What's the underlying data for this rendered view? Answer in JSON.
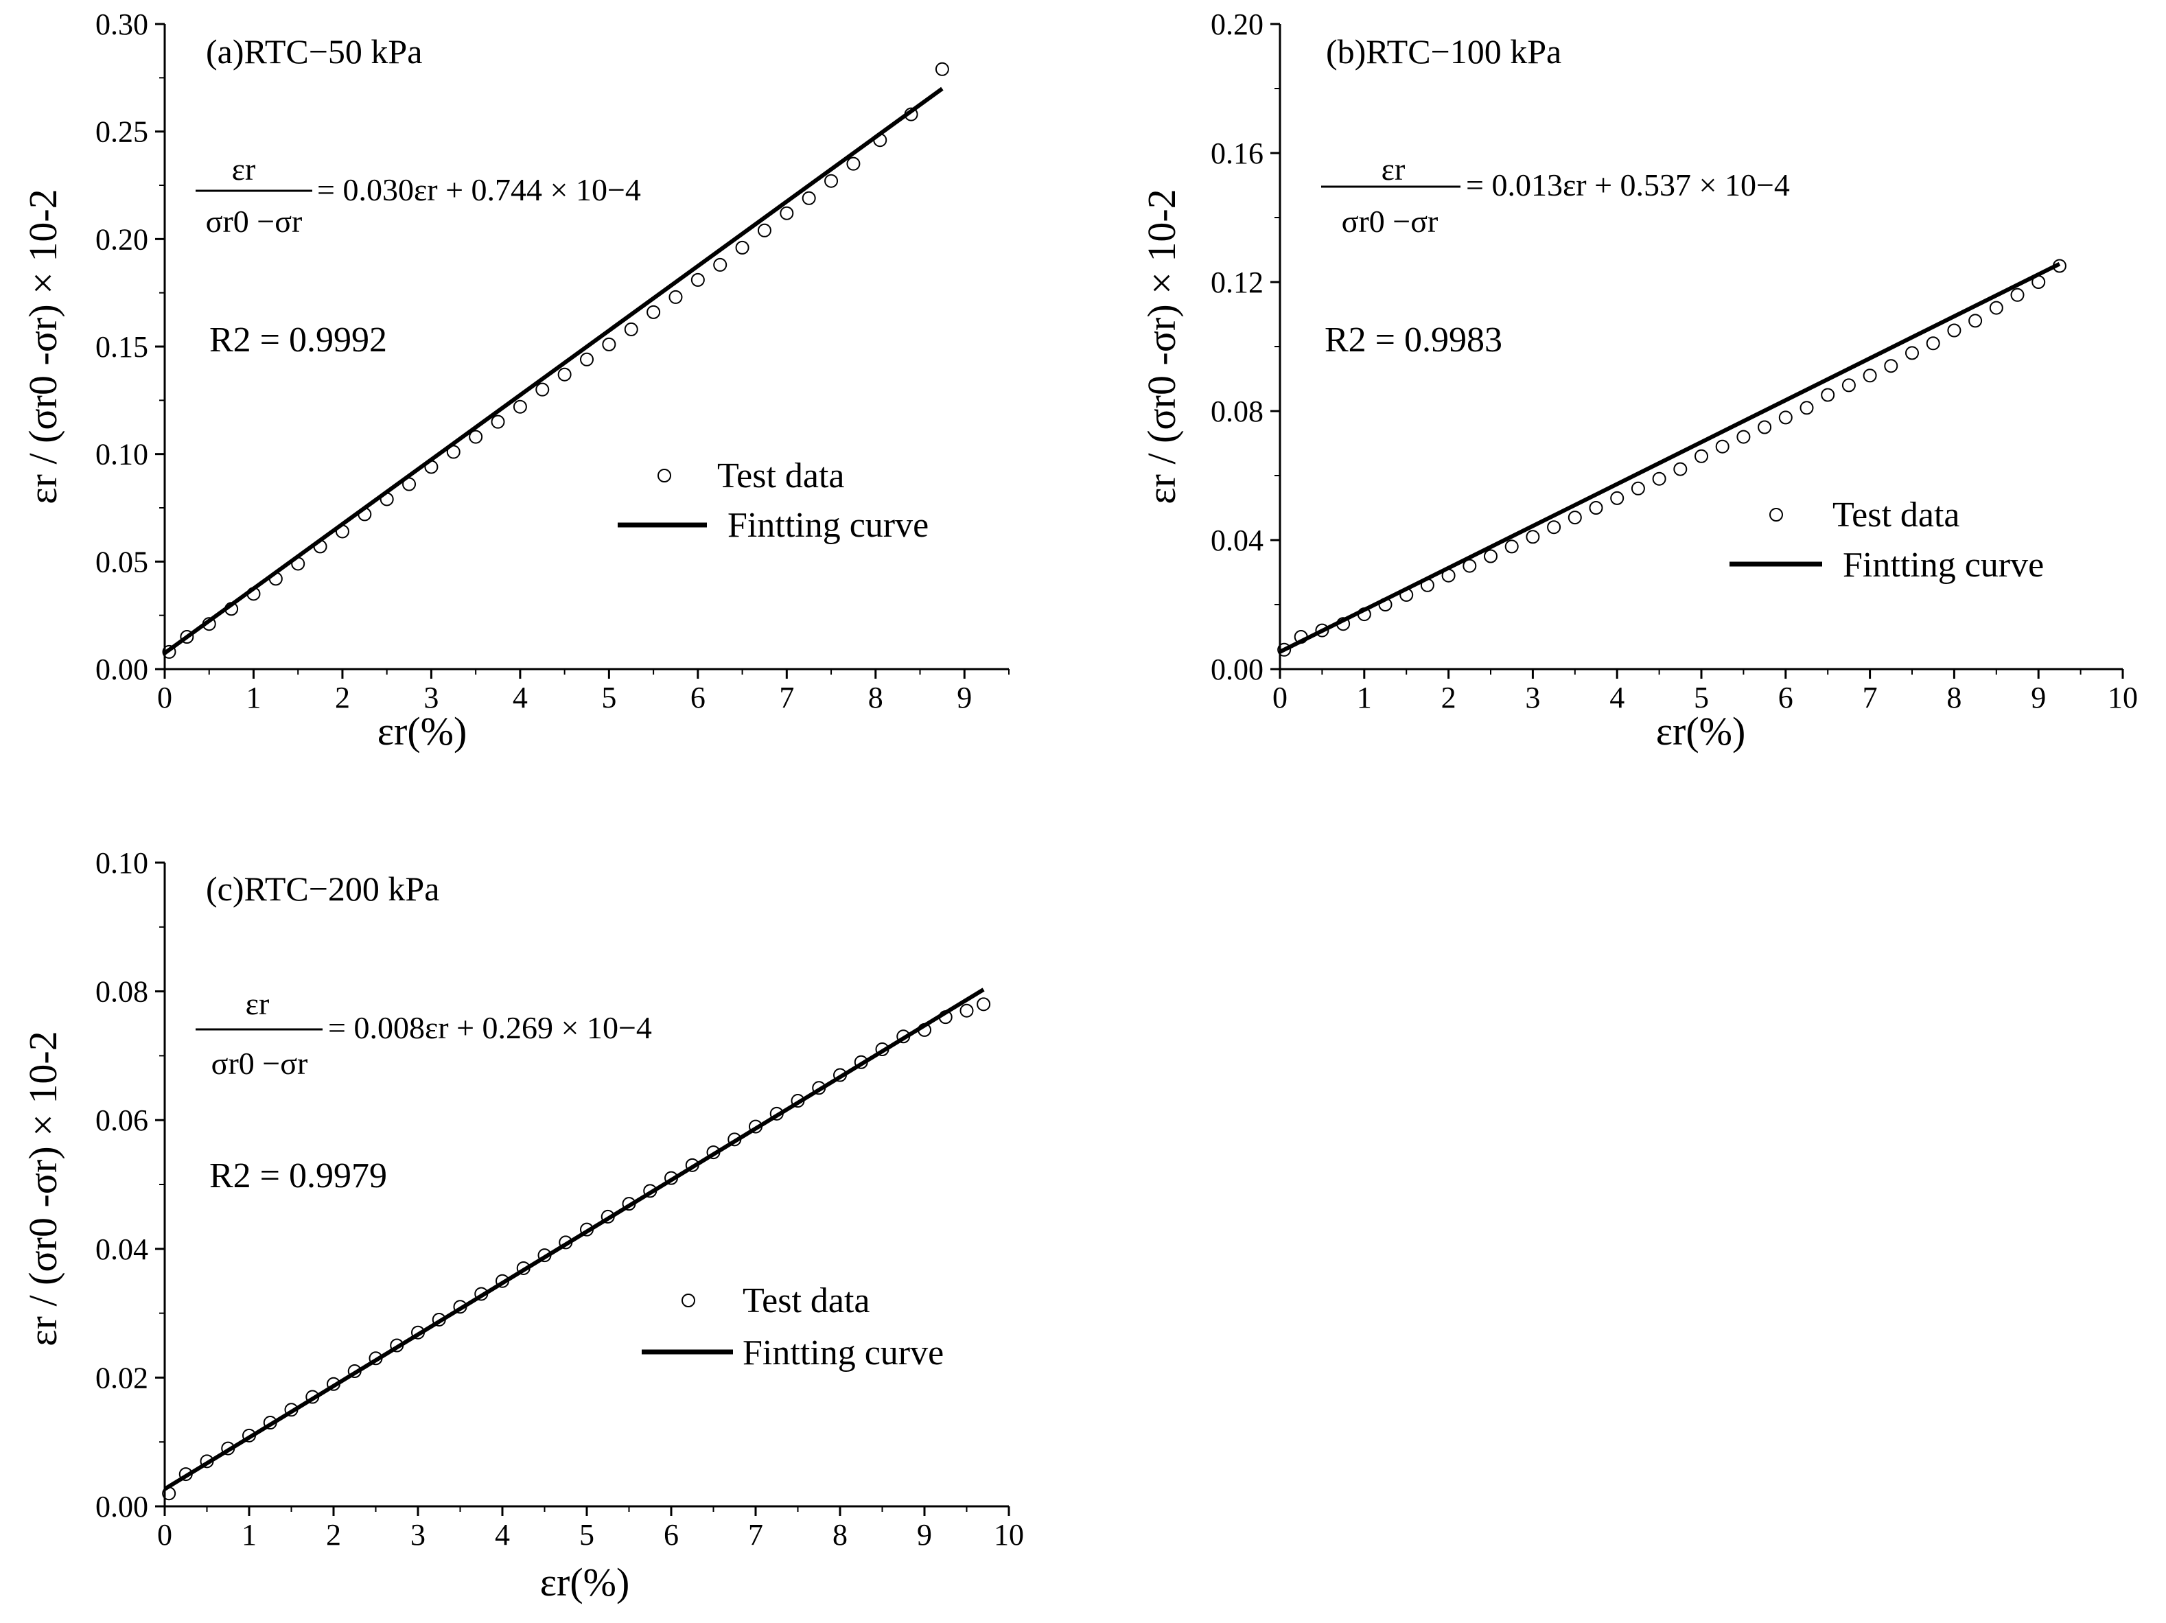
{
  "chart_data": [
    {
      "type": "scatter",
      "title": "(a)RTC−50 kPa",
      "xlabel": "εr(%)",
      "ylabel": "εr / (σr0 -σr) × 10-2",
      "xlim": [
        0,
        9.5
      ],
      "ylim": [
        0,
        0.3
      ],
      "xticks": [
        "0",
        "1",
        "2",
        "3",
        "4",
        "5",
        "6",
        "7",
        "8",
        "9"
      ],
      "yticks": [
        "0.00",
        "0.05",
        "0.10",
        "0.15",
        "0.20",
        "0.25",
        "0.30"
      ],
      "equation": {
        "lhs_num": "εr",
        "lhs_den": "σr0 −σr",
        "rhs": "= 0.030εr + 0.744 × 10−4"
      },
      "r2": "R2 = 0.9992",
      "legend": [
        "Test data",
        "Fintting curve"
      ],
      "legend_position": "center-right",
      "fit": {
        "slope": 0.03,
        "intercept": 0.00744,
        "x_range": [
          0,
          8.75
        ]
      },
      "series": [
        {
          "name": "Test data",
          "marker": "open-circle",
          "x": [
            0.05,
            0.25,
            0.5,
            0.75,
            1.0,
            1.25,
            1.5,
            1.75,
            2.0,
            2.25,
            2.5,
            2.75,
            3.0,
            3.25,
            3.5,
            3.75,
            4.0,
            4.25,
            4.5,
            4.75,
            5.0,
            5.25,
            5.5,
            5.75,
            6.0,
            6.25,
            6.5,
            6.75,
            7.0,
            7.25,
            7.5,
            7.75,
            8.05,
            8.4,
            8.75
          ],
          "y": [
            0.008,
            0.015,
            0.021,
            0.028,
            0.035,
            0.042,
            0.049,
            0.057,
            0.064,
            0.072,
            0.079,
            0.086,
            0.094,
            0.101,
            0.108,
            0.115,
            0.122,
            0.13,
            0.137,
            0.144,
            0.151,
            0.158,
            0.166,
            0.173,
            0.181,
            0.188,
            0.196,
            0.204,
            0.212,
            0.219,
            0.227,
            0.235,
            0.246,
            0.258,
            0.279
          ]
        },
        {
          "name": "Fintting curve",
          "line": "solid-black"
        }
      ]
    },
    {
      "type": "scatter",
      "title": "(b)RTC−100 kPa",
      "xlabel": "εr(%)",
      "ylabel": "εr / (σr0 -σr) × 10-2",
      "xlim": [
        0,
        10
      ],
      "ylim": [
        0,
        0.2
      ],
      "xticks": [
        "0",
        "1",
        "2",
        "3",
        "4",
        "5",
        "6",
        "7",
        "8",
        "9",
        "10"
      ],
      "yticks": [
        "0.00",
        "0.04",
        "0.08",
        "0.12",
        "0.16",
        "0.20"
      ],
      "equation": {
        "lhs_num": "εr",
        "lhs_den": "σr0 −σr",
        "rhs": "= 0.013εr + 0.537 × 10−4"
      },
      "r2": "R2 = 0.9983",
      "legend": [
        "Test data",
        "Fintting curve"
      ],
      "legend_position": "center-right",
      "fit": {
        "slope": 0.013,
        "intercept": 0.00537,
        "x_range": [
          0,
          9.25
        ]
      },
      "series": [
        {
          "name": "Test data",
          "marker": "open-circle",
          "x": [
            0.05,
            0.25,
            0.5,
            0.75,
            1.0,
            1.25,
            1.5,
            1.75,
            2.0,
            2.25,
            2.5,
            2.75,
            3.0,
            3.25,
            3.5,
            3.75,
            4.0,
            4.25,
            4.5,
            4.75,
            5.0,
            5.25,
            5.5,
            5.75,
            6.0,
            6.25,
            6.5,
            6.75,
            7.0,
            7.25,
            7.5,
            7.75,
            8.0,
            8.25,
            8.5,
            8.75,
            9.0,
            9.25
          ],
          "y": [
            0.006,
            0.01,
            0.012,
            0.014,
            0.017,
            0.02,
            0.023,
            0.026,
            0.029,
            0.032,
            0.035,
            0.038,
            0.041,
            0.044,
            0.047,
            0.05,
            0.053,
            0.056,
            0.059,
            0.062,
            0.066,
            0.069,
            0.072,
            0.075,
            0.078,
            0.081,
            0.085,
            0.088,
            0.091,
            0.094,
            0.098,
            0.101,
            0.105,
            0.108,
            0.112,
            0.116,
            0.12,
            0.125
          ]
        },
        {
          "name": "Fintting curve",
          "line": "solid-black"
        }
      ]
    },
    {
      "type": "scatter",
      "title": "(c)RTC−200 kPa",
      "xlabel": "εr(%)",
      "ylabel": "εr / (σr0 -σr) × 10-2",
      "xlim": [
        0,
        10
      ],
      "ylim": [
        0,
        0.1
      ],
      "xticks": [
        "0",
        "1",
        "2",
        "3",
        "4",
        "5",
        "6",
        "7",
        "8",
        "9",
        "10"
      ],
      "yticks": [
        "0.00",
        "0.02",
        "0.04",
        "0.06",
        "0.08",
        "0.10"
      ],
      "equation": {
        "lhs_num": "εr",
        "lhs_den": "σr0 −σr",
        "rhs": "= 0.008εr + 0.269 × 10−4"
      },
      "r2": "R2 = 0.9979",
      "legend": [
        "Test data",
        "Fintting curve"
      ],
      "legend_position": "center-right",
      "fit": {
        "slope": 0.008,
        "intercept": 0.00269,
        "x_range": [
          0,
          9.7
        ]
      },
      "series": [
        {
          "name": "Test data",
          "marker": "open-circle",
          "x": [
            0.05,
            0.25,
            0.5,
            0.75,
            1.0,
            1.25,
            1.5,
            1.75,
            2.0,
            2.25,
            2.5,
            2.75,
            3.0,
            3.25,
            3.5,
            3.75,
            4.0,
            4.25,
            4.5,
            4.75,
            5.0,
            5.25,
            5.5,
            5.75,
            6.0,
            6.25,
            6.5,
            6.75,
            7.0,
            7.25,
            7.5,
            7.75,
            8.0,
            8.25,
            8.5,
            8.75,
            9.0,
            9.25,
            9.5,
            9.7
          ],
          "y": [
            0.002,
            0.005,
            0.007,
            0.009,
            0.011,
            0.013,
            0.015,
            0.017,
            0.019,
            0.021,
            0.023,
            0.025,
            0.027,
            0.029,
            0.031,
            0.033,
            0.035,
            0.037,
            0.039,
            0.041,
            0.043,
            0.045,
            0.047,
            0.049,
            0.051,
            0.053,
            0.055,
            0.057,
            0.059,
            0.061,
            0.063,
            0.065,
            0.067,
            0.069,
            0.071,
            0.073,
            0.074,
            0.076,
            0.077,
            0.078
          ]
        },
        {
          "name": "Fintting curve",
          "line": "solid-black"
        }
      ]
    }
  ]
}
